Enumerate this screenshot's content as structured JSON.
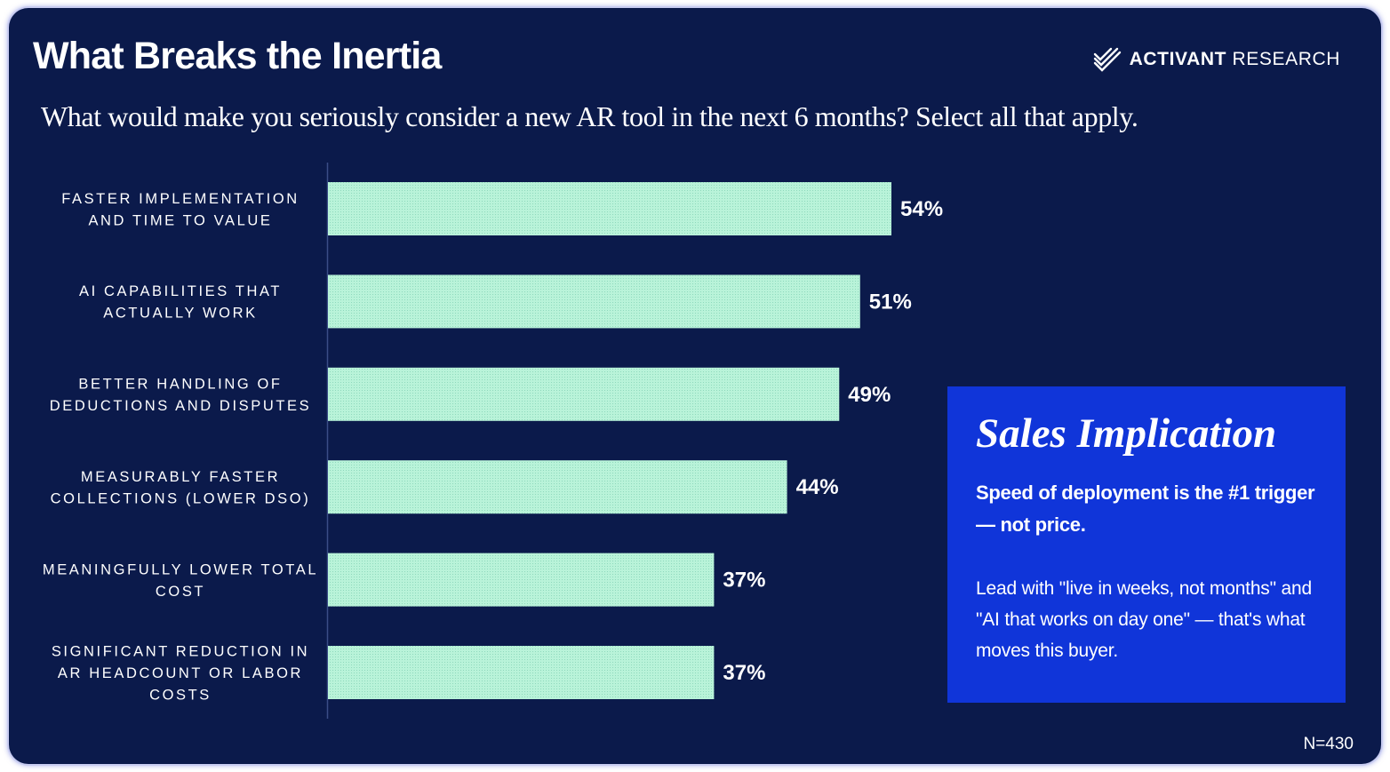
{
  "header": {
    "title": "What Breaks the Inertia",
    "subtitle": "What would make you seriously consider a new AR tool in the next 6 months? Select all that apply.",
    "logo_bold": "ACTIVANT",
    "logo_light": "RESEARCH",
    "logo_icon": "activant-stripes-icon"
  },
  "chart_data": {
    "type": "bar",
    "orientation": "horizontal",
    "title": "",
    "xlabel": "",
    "ylabel": "",
    "xlim": [
      0,
      100
    ],
    "grid": false,
    "categories": [
      [
        "FASTER IMPLEMENTATION",
        "AND TIME TO VALUE"
      ],
      [
        "AI CAPABILITIES THAT",
        "ACTUALLY WORK"
      ],
      [
        "BETTER HANDLING OF",
        "DEDUCTIONS AND DISPUTES"
      ],
      [
        "MEASURABLY FASTER",
        "COLLECTIONS (LOWER DSO)"
      ],
      [
        "MEANINGFULLY LOWER TOTAL",
        "COST"
      ],
      [
        "SIGNIFICANT REDUCTION IN",
        "AR HEADCOUNT OR LABOR",
        "COSTS"
      ]
    ],
    "values": [
      54,
      51,
      49,
      44,
      37,
      37
    ],
    "value_labels": [
      "54%",
      "51%",
      "49%",
      "44%",
      "37%",
      "37%"
    ],
    "bar_color": "#b9f3d9"
  },
  "callout": {
    "title": "Sales Implication",
    "lead": "Speed of deployment is the #1 trigger — not price.",
    "body": "Lead with \"live in weeks, not months\" and \"AI that works on day one\" — that's what moves this buyer."
  },
  "footnote": "N=430",
  "colors": {
    "background": "#0b1a4b",
    "callout_background": "#1035d9",
    "text": "#ffffff"
  }
}
